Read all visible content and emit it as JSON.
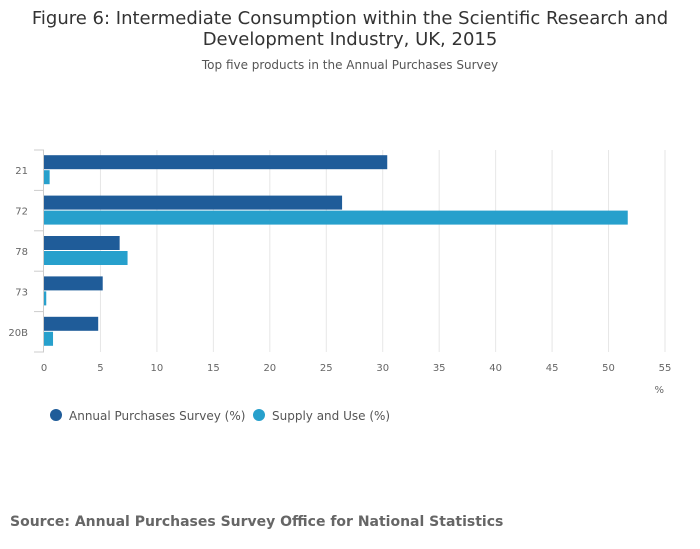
{
  "chart_data": {
    "type": "bar",
    "orientation": "horizontal",
    "title": "Figure 6: Intermediate Consumption within the Scientific Research and Development Industry, UK, 2015",
    "title_lines": [
      "Figure 6: Intermediate Consumption within the Scientific Research and",
      "Development Industry, UK, 2015"
    ],
    "subtitle": "Top five products in the Annual Purchases Survey",
    "categories": [
      "21",
      "72",
      "78",
      "73",
      "20B"
    ],
    "series": [
      {
        "name": "Annual Purchases Survey (%)",
        "color": "#1f5c99",
        "values": [
          30.4,
          26.4,
          6.7,
          5.2,
          4.8
        ]
      },
      {
        "name": "Supply and Use (%)",
        "color": "#27a0cc",
        "values": [
          0.5,
          51.7,
          7.4,
          0.2,
          0.8
        ]
      }
    ],
    "xlim": [
      0,
      55
    ],
    "xticks": [
      0,
      5,
      10,
      15,
      20,
      25,
      30,
      35,
      40,
      45,
      50,
      55
    ],
    "xlabel": "%",
    "ylabel": "",
    "grid": true,
    "legend_position": "bottom-left"
  },
  "source": "Source: Annual Purchases Survey Office for National Statistics"
}
